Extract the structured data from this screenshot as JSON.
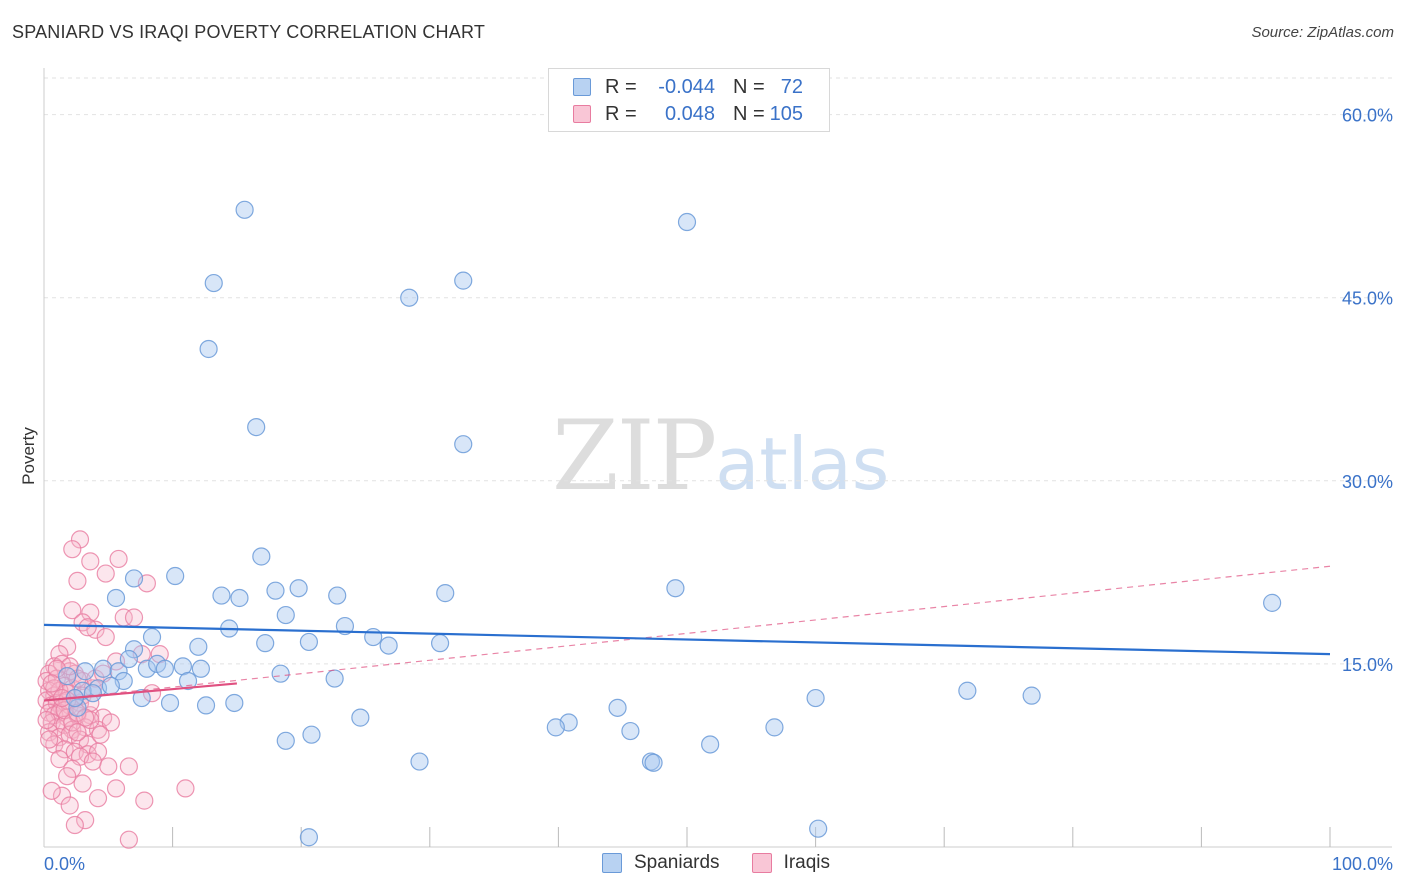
{
  "header": {
    "title": "SPANIARD VS IRAQI POVERTY CORRELATION CHART",
    "source": "Source: ZipAtlas.com"
  },
  "watermark": {
    "zip": "ZIP",
    "atlas": "atlas"
  },
  "legend": {
    "rows": [
      {
        "r_label": "R =",
        "r_value": "-0.044",
        "n_label": "N =",
        "n_value": "72"
      },
      {
        "r_label": "R =",
        "r_value": "0.048",
        "n_label": "N =",
        "n_value": "105"
      }
    ]
  },
  "bottom_legend": {
    "spaniards": "Spaniards",
    "iraqis": "Iraqis"
  },
  "colors": {
    "spaniards_fill": "#a8c8f0",
    "spaniards_stroke": "#6a9ad8",
    "spaniards_line": "#2a6fcf",
    "iraqis_fill": "#f6b8cc",
    "iraqis_stroke": "#e87ca0",
    "iraqis_line": "#e05080",
    "tick_text": "#3a72c8",
    "grid": "#e2e2e2"
  },
  "chart_data": {
    "type": "scatter",
    "title": "SPANIARD VS IRAQI POVERTY CORRELATION CHART",
    "xlabel": "",
    "ylabel": "Poverty",
    "xlim": [
      0,
      100
    ],
    "ylim": [
      0,
      63
    ],
    "x_tick_labels": [
      {
        "value": 0,
        "label": "0.0%"
      },
      {
        "value": 100,
        "label": "100.0%"
      }
    ],
    "y_tick_labels": [
      {
        "value": 15,
        "label": "15.0%"
      },
      {
        "value": 30,
        "label": "30.0%"
      },
      {
        "value": 45,
        "label": "45.0%"
      },
      {
        "value": 60,
        "label": "60.0%"
      }
    ],
    "x_minor_ticks": [
      10,
      20,
      30,
      40,
      50,
      60,
      70,
      80,
      90,
      100
    ],
    "series": [
      {
        "name": "Spaniards",
        "R": -0.044,
        "N": 72,
        "trend": {
          "x": [
            0,
            100
          ],
          "y": [
            18.2,
            15.8
          ],
          "style": "solid"
        },
        "points": [
          [
            15.6,
            52.2
          ],
          [
            50.0,
            51.2
          ],
          [
            13.2,
            46.2
          ],
          [
            32.6,
            46.4
          ],
          [
            28.4,
            45.0
          ],
          [
            12.8,
            40.8
          ],
          [
            16.5,
            34.4
          ],
          [
            32.6,
            33.0
          ],
          [
            16.9,
            23.8
          ],
          [
            10.2,
            22.2
          ],
          [
            7.0,
            22.0
          ],
          [
            5.6,
            20.4
          ],
          [
            13.8,
            20.6
          ],
          [
            15.2,
            20.4
          ],
          [
            18.0,
            21.0
          ],
          [
            19.8,
            21.2
          ],
          [
            22.8,
            20.6
          ],
          [
            31.2,
            20.8
          ],
          [
            49.1,
            21.2
          ],
          [
            95.5,
            20.0
          ],
          [
            18.8,
            19.0
          ],
          [
            14.4,
            17.9
          ],
          [
            23.4,
            18.1
          ],
          [
            8.4,
            17.2
          ],
          [
            25.6,
            17.2
          ],
          [
            17.2,
            16.7
          ],
          [
            20.6,
            16.8
          ],
          [
            26.8,
            16.5
          ],
          [
            30.8,
            16.7
          ],
          [
            12.0,
            16.4
          ],
          [
            7.0,
            16.2
          ],
          [
            3.2,
            14.4
          ],
          [
            4.6,
            14.6
          ],
          [
            5.8,
            14.4
          ],
          [
            6.6,
            15.4
          ],
          [
            8.0,
            14.6
          ],
          [
            8.8,
            15.0
          ],
          [
            9.4,
            14.6
          ],
          [
            10.8,
            14.8
          ],
          [
            12.2,
            14.6
          ],
          [
            6.2,
            13.6
          ],
          [
            11.2,
            13.6
          ],
          [
            18.4,
            14.2
          ],
          [
            22.6,
            13.8
          ],
          [
            4.2,
            13.0
          ],
          [
            3.0,
            12.8
          ],
          [
            7.6,
            12.2
          ],
          [
            9.8,
            11.8
          ],
          [
            12.6,
            11.6
          ],
          [
            14.8,
            11.8
          ],
          [
            2.6,
            11.4
          ],
          [
            71.8,
            12.8
          ],
          [
            76.8,
            12.4
          ],
          [
            60.0,
            12.2
          ],
          [
            44.6,
            11.4
          ],
          [
            24.6,
            10.6
          ],
          [
            40.8,
            10.2
          ],
          [
            39.8,
            9.8
          ],
          [
            45.6,
            9.5
          ],
          [
            56.8,
            9.8
          ],
          [
            20.8,
            9.2
          ],
          [
            18.8,
            8.7
          ],
          [
            51.8,
            8.4
          ],
          [
            29.2,
            7.0
          ],
          [
            47.2,
            7.0
          ],
          [
            47.4,
            6.9
          ],
          [
            20.6,
            0.8
          ],
          [
            60.2,
            1.5
          ],
          [
            2.4,
            12.2
          ],
          [
            5.2,
            13.2
          ],
          [
            1.8,
            14.0
          ],
          [
            3.8,
            12.6
          ]
        ]
      },
      {
        "name": "Iraqis",
        "R": 0.048,
        "N": 105,
        "trend_solid": {
          "x": [
            0,
            15
          ],
          "y": [
            12.0,
            13.4
          ]
        },
        "trend_dashed": {
          "x": [
            0,
            100
          ],
          "y": [
            12.0,
            23.0
          ]
        },
        "points": [
          [
            2.8,
            25.2
          ],
          [
            2.2,
            24.4
          ],
          [
            3.6,
            23.4
          ],
          [
            5.8,
            23.6
          ],
          [
            4.8,
            22.4
          ],
          [
            2.6,
            21.8
          ],
          [
            8.0,
            21.6
          ],
          [
            2.2,
            19.4
          ],
          [
            3.6,
            19.2
          ],
          [
            3.0,
            18.4
          ],
          [
            6.2,
            18.8
          ],
          [
            7.0,
            18.8
          ],
          [
            4.0,
            17.8
          ],
          [
            3.4,
            18.0
          ],
          [
            4.8,
            17.2
          ],
          [
            1.8,
            16.4
          ],
          [
            1.2,
            15.8
          ],
          [
            5.6,
            15.2
          ],
          [
            7.6,
            15.8
          ],
          [
            0.8,
            14.8
          ],
          [
            1.4,
            15.0
          ],
          [
            2.0,
            14.4
          ],
          [
            2.4,
            14.2
          ],
          [
            0.4,
            14.2
          ],
          [
            0.2,
            13.6
          ],
          [
            1.0,
            13.8
          ],
          [
            1.6,
            13.2
          ],
          [
            2.2,
            13.0
          ],
          [
            3.0,
            13.6
          ],
          [
            3.8,
            13.0
          ],
          [
            0.4,
            12.8
          ],
          [
            0.8,
            12.4
          ],
          [
            1.2,
            12.8
          ],
          [
            1.8,
            12.6
          ],
          [
            2.4,
            12.2
          ],
          [
            0.2,
            12.0
          ],
          [
            0.6,
            11.6
          ],
          [
            1.0,
            11.8
          ],
          [
            1.4,
            11.4
          ],
          [
            2.0,
            11.6
          ],
          [
            2.8,
            11.8
          ],
          [
            0.4,
            11.0
          ],
          [
            0.8,
            10.8
          ],
          [
            1.2,
            11.0
          ],
          [
            1.8,
            10.6
          ],
          [
            2.6,
            10.8
          ],
          [
            3.6,
            10.8
          ],
          [
            4.6,
            10.6
          ],
          [
            0.6,
            10.2
          ],
          [
            1.0,
            9.8
          ],
          [
            1.6,
            10.0
          ],
          [
            2.2,
            9.6
          ],
          [
            3.2,
            9.8
          ],
          [
            4.2,
            9.6
          ],
          [
            0.4,
            9.4
          ],
          [
            1.2,
            9.0
          ],
          [
            2.0,
            9.2
          ],
          [
            2.8,
            8.8
          ],
          [
            3.4,
            8.4
          ],
          [
            0.8,
            8.4
          ],
          [
            1.6,
            8.0
          ],
          [
            2.4,
            7.8
          ],
          [
            3.4,
            7.6
          ],
          [
            4.2,
            7.8
          ],
          [
            1.2,
            7.2
          ],
          [
            2.8,
            7.4
          ],
          [
            3.8,
            7.0
          ],
          [
            2.2,
            6.4
          ],
          [
            5.0,
            6.6
          ],
          [
            6.6,
            6.6
          ],
          [
            8.4,
            12.6
          ],
          [
            9.0,
            15.8
          ],
          [
            3.6,
            10.4
          ],
          [
            2.6,
            13.8
          ],
          [
            1.8,
            12.0
          ],
          [
            5.2,
            10.2
          ],
          [
            4.4,
            9.2
          ],
          [
            0.8,
            13.0
          ],
          [
            1.6,
            11.2
          ],
          [
            2.2,
            10.2
          ],
          [
            3.0,
            12.4
          ],
          [
            3.6,
            11.8
          ],
          [
            4.0,
            13.8
          ],
          [
            4.6,
            14.2
          ],
          [
            2.0,
            14.8
          ],
          [
            1.0,
            14.6
          ],
          [
            0.6,
            13.4
          ],
          [
            1.4,
            12.2
          ],
          [
            2.6,
            11.0
          ],
          [
            3.2,
            10.6
          ],
          [
            4.2,
            4.0
          ],
          [
            5.6,
            4.8
          ],
          [
            7.8,
            3.8
          ],
          [
            11.0,
            4.8
          ],
          [
            1.4,
            4.2
          ],
          [
            2.0,
            3.4
          ],
          [
            3.2,
            2.2
          ],
          [
            2.4,
            1.8
          ],
          [
            6.6,
            0.6
          ],
          [
            0.6,
            4.6
          ],
          [
            1.8,
            5.8
          ],
          [
            3.0,
            5.2
          ],
          [
            0.2,
            10.4
          ],
          [
            0.4,
            8.8
          ],
          [
            2.6,
            9.4
          ]
        ]
      }
    ]
  }
}
